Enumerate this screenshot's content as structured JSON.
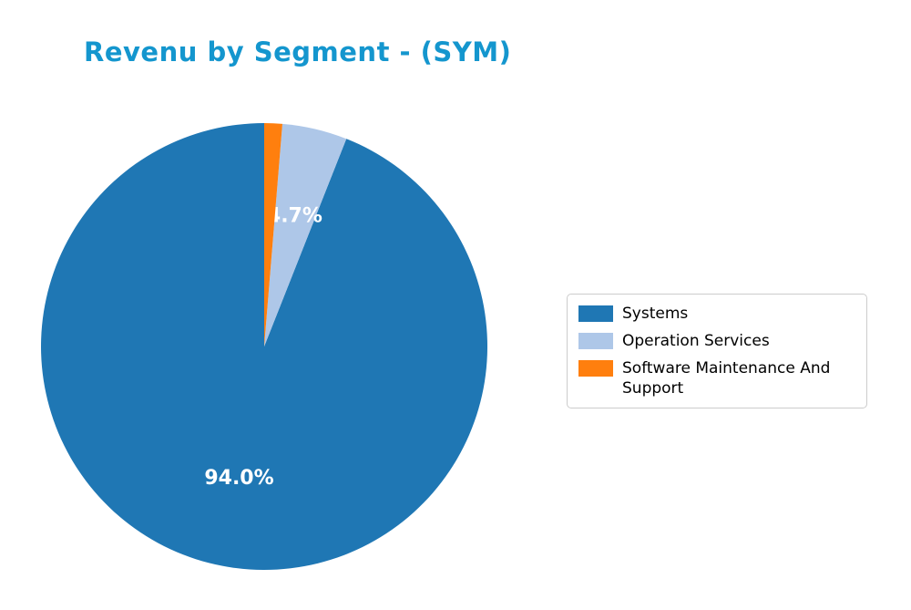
{
  "chart_data": {
    "type": "pie",
    "title": "Revenu by Segment - (SYM)",
    "title_color": "#1496ce",
    "labels": [
      "Systems",
      "Operation Services",
      "Software Maintenance And Support"
    ],
    "values": [
      94.0,
      4.7,
      1.3
    ],
    "colors": [
      "#1f77b4",
      "#aec7e8",
      "#ff7f0e"
    ],
    "pct_labels": [
      "94.0%",
      "4.7%",
      ""
    ],
    "pct_label_color": "#ffffff",
    "start_angle_deg": 90,
    "counterclockwise": true,
    "legend": {
      "position": "center right",
      "entries": [
        {
          "label": "Systems",
          "color": "#1f77b4"
        },
        {
          "label": "Operation Services",
          "color": "#aec7e8"
        },
        {
          "label": "Software Maintenance And Support",
          "color": "#ff7f0e"
        }
      ]
    }
  }
}
